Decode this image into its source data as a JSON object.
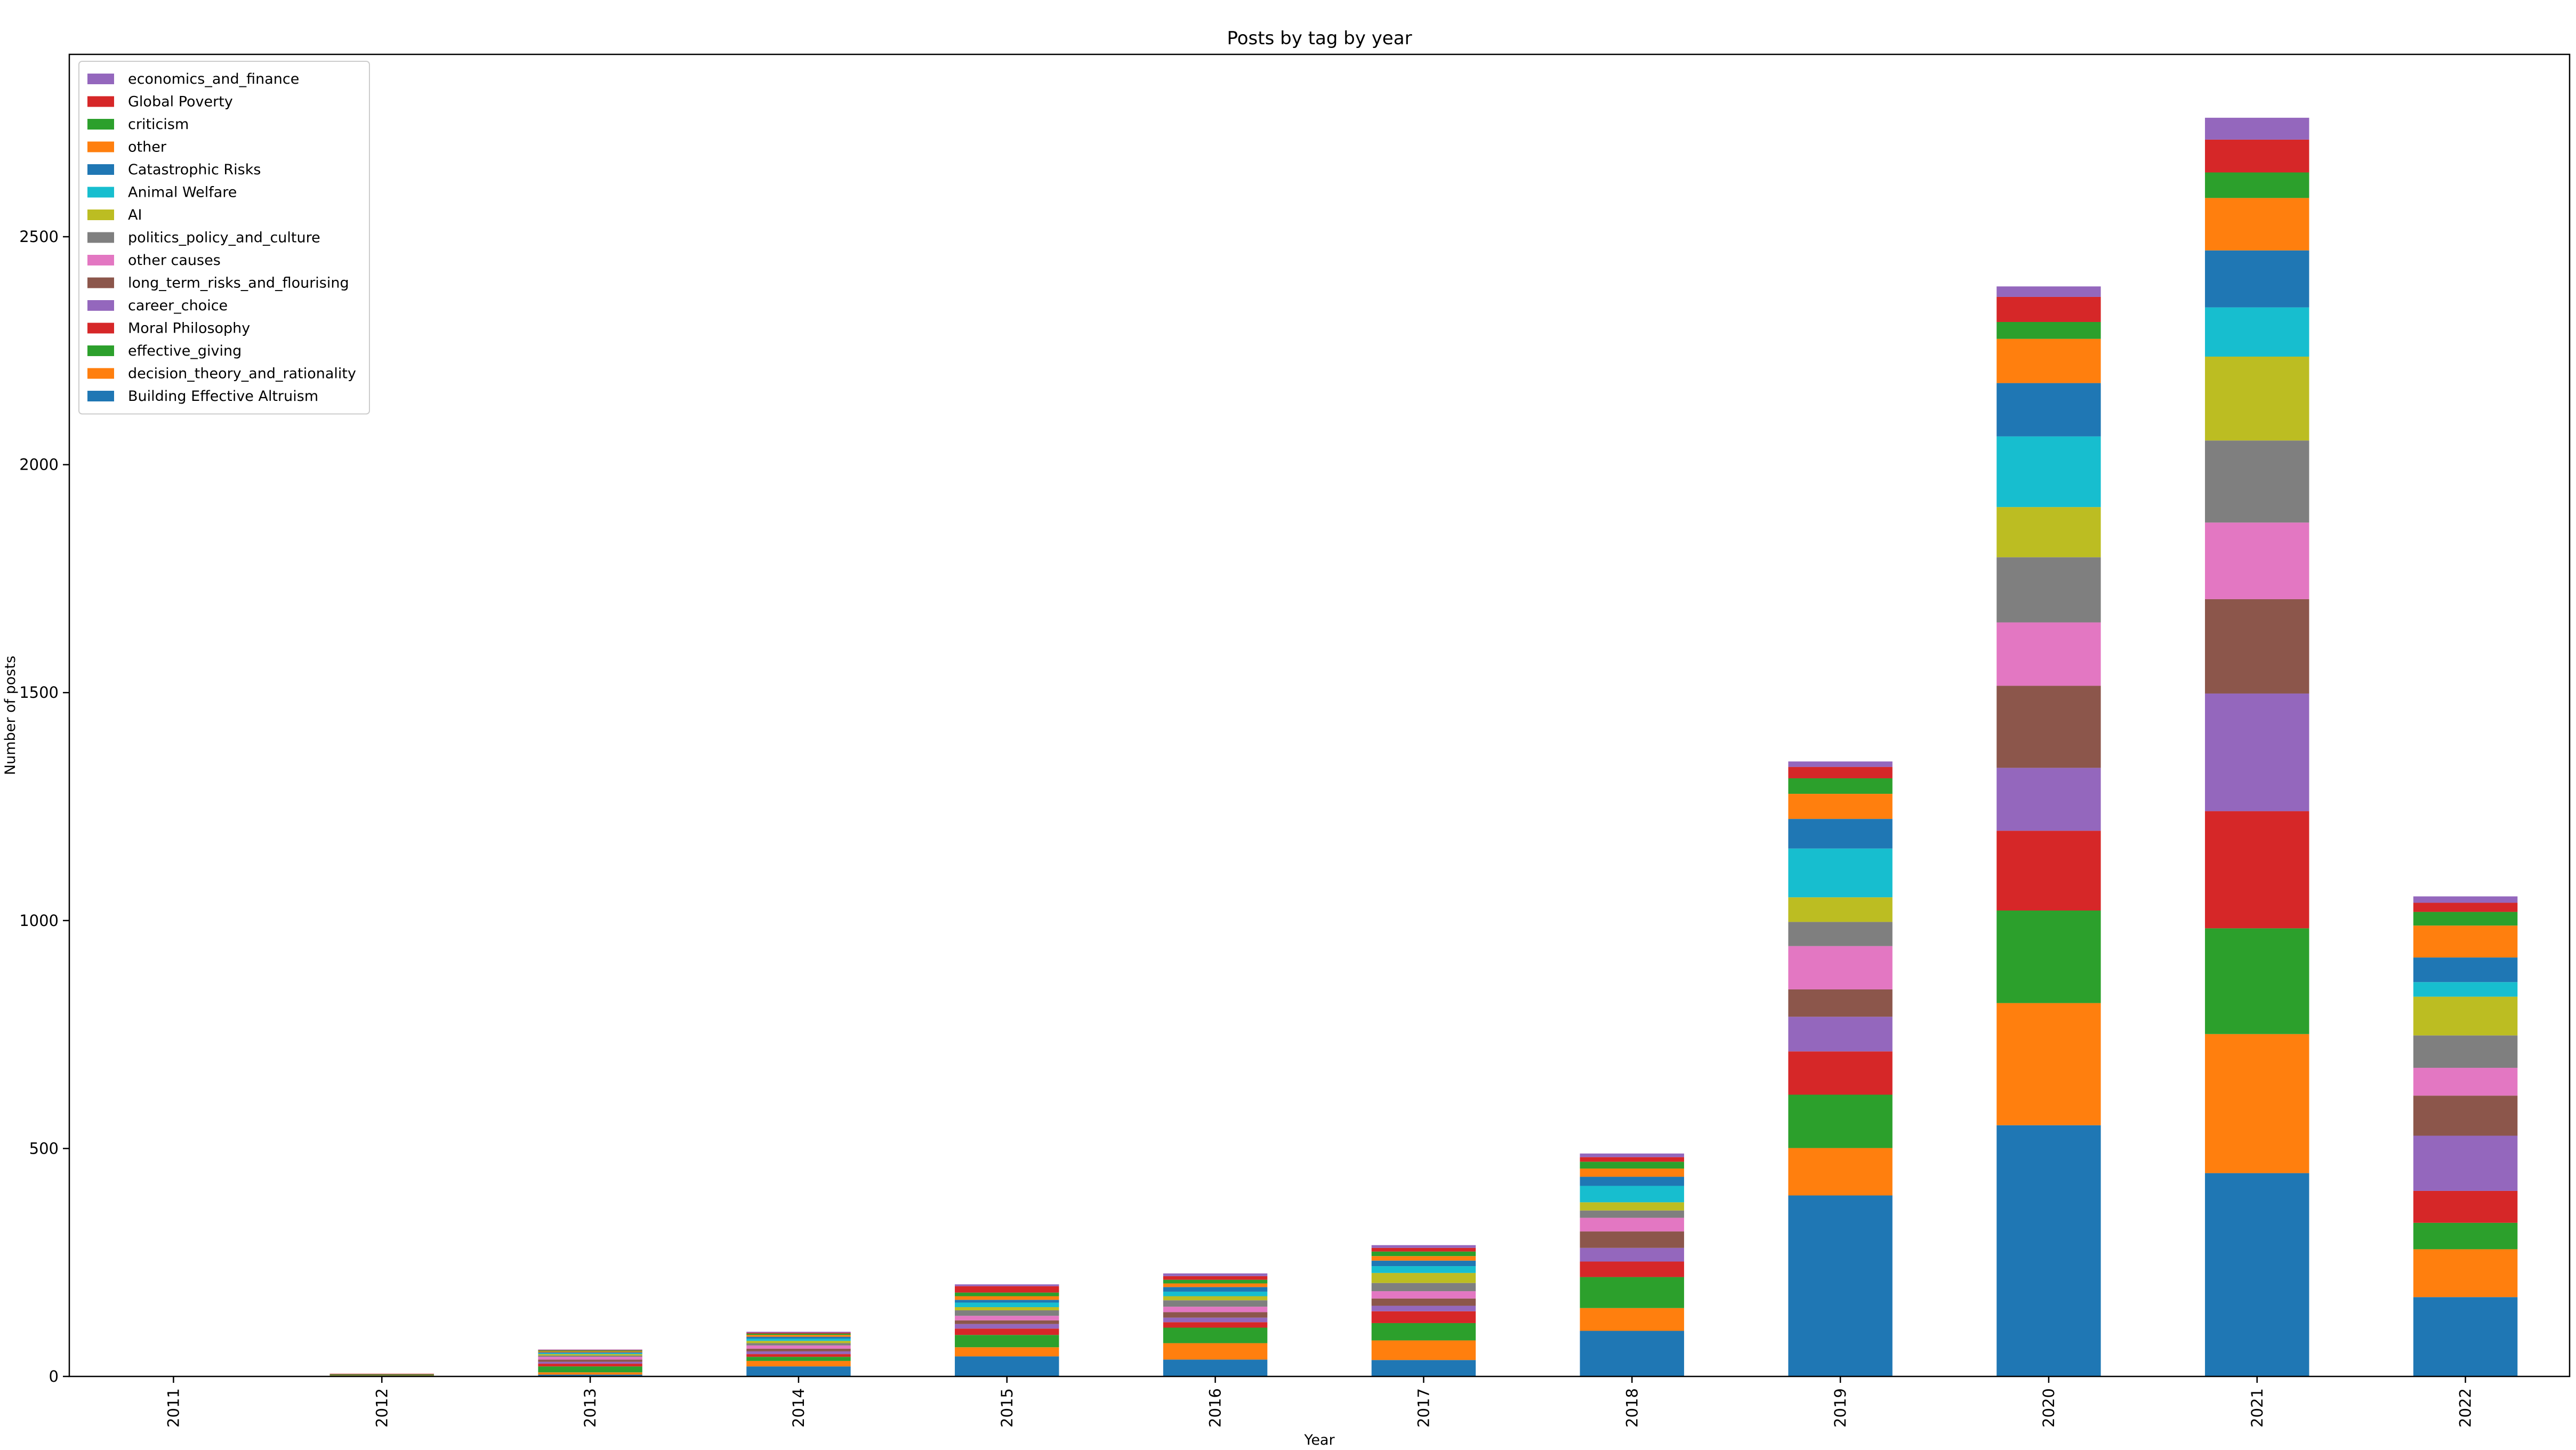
{
  "chart_data": {
    "type": "bar",
    "stacked": true,
    "title": "Posts by tag by year",
    "xlabel": "Year",
    "ylabel": "Number of posts",
    "ylim": [
      0,
      2900
    ],
    "yticks": [
      0,
      500,
      1000,
      1500,
      2000,
      2500
    ],
    "grid": false,
    "legend_position": "top-left",
    "categories": [
      "2011",
      "2012",
      "2013",
      "2014",
      "2015",
      "2016",
      "2017",
      "2018",
      "2019",
      "2020",
      "2021",
      "2022"
    ],
    "series": [
      {
        "name": "Building Effective Altruism",
        "color": "#1f77b4",
        "values": [
          0,
          1,
          4,
          22,
          44,
          37,
          36,
          100,
          397,
          551,
          446,
          174
        ]
      },
      {
        "name": "decision_theory_and_rationality",
        "color": "#ff7f0e",
        "values": [
          0,
          1,
          5,
          12,
          20,
          36,
          43,
          50,
          104,
          268,
          305,
          105
        ]
      },
      {
        "name": "effective_giving",
        "color": "#2ca02c",
        "values": [
          0,
          1,
          13,
          9,
          27,
          34,
          38,
          68,
          117,
          203,
          232,
          58
        ]
      },
      {
        "name": "Moral Philosophy",
        "color": "#d62728",
        "values": [
          0,
          0,
          6,
          6,
          14,
          12,
          26,
          34,
          95,
          175,
          257,
          70
        ]
      },
      {
        "name": "career_choice",
        "color": "#9467bd",
        "values": [
          0,
          0,
          4,
          6,
          10,
          10,
          12,
          30,
          76,
          138,
          258,
          121
        ]
      },
      {
        "name": "long_term_risks_and_flourising",
        "color": "#8c564b",
        "values": [
          0,
          1,
          5,
          6,
          8,
          12,
          16,
          36,
          60,
          180,
          207,
          88
        ]
      },
      {
        "name": "other causes",
        "color": "#e377c2",
        "values": [
          0,
          0,
          6,
          7,
          10,
          12,
          16,
          30,
          95,
          139,
          168,
          61
        ]
      },
      {
        "name": "politics_policy_and_culture",
        "color": "#7f7f7f",
        "values": [
          0,
          0,
          3,
          5,
          12,
          14,
          18,
          16,
          53,
          143,
          180,
          71
        ]
      },
      {
        "name": "AI",
        "color": "#bcbd22",
        "values": [
          0,
          0,
          3,
          5,
          7,
          9,
          22,
          18,
          54,
          110,
          184,
          85
        ]
      },
      {
        "name": "Animal Welfare",
        "color": "#17becf",
        "values": [
          0,
          0,
          2,
          5,
          10,
          10,
          15,
          36,
          107,
          155,
          108,
          32
        ]
      },
      {
        "name": "Catastrophic Risks",
        "color": "#1f77b4",
        "values": [
          0,
          0,
          2,
          4,
          6,
          10,
          12,
          20,
          65,
          117,
          125,
          54
        ]
      },
      {
        "name": "other",
        "color": "#ff7f0e",
        "values": [
          0,
          0,
          2,
          4,
          8,
          8,
          10,
          18,
          55,
          97,
          115,
          70
        ]
      },
      {
        "name": "criticism",
        "color": "#2ca02c",
        "values": [
          0,
          1,
          2,
          3,
          8,
          8,
          10,
          15,
          34,
          37,
          56,
          30
        ]
      },
      {
        "name": "Global Poverty",
        "color": "#d62728",
        "values": [
          0,
          1,
          1,
          2,
          14,
          8,
          8,
          10,
          25,
          55,
          72,
          20
        ]
      },
      {
        "name": "economics_and_finance",
        "color": "#9467bd",
        "values": [
          0,
          0,
          1,
          2,
          4,
          6,
          6,
          8,
          12,
          23,
          48,
          14
        ]
      }
    ]
  }
}
